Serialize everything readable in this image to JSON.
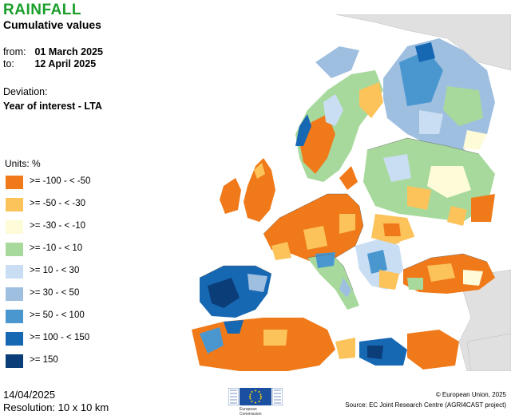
{
  "header": {
    "title": "RAINFALL",
    "subtitle": "Cumulative values"
  },
  "period": {
    "from_label": "from:",
    "from_value": "01 March 2025",
    "to_label": "to:",
    "to_value": "12 April 2025"
  },
  "deviation": {
    "label": "Deviation:",
    "value": "Year of interest - LTA"
  },
  "legend": {
    "title": "Units: %",
    "items": [
      {
        "label": ">= -100 - < -50",
        "color": "#f07a1a"
      },
      {
        "label": ">= -50 - < -30",
        "color": "#fbc35a"
      },
      {
        "label": ">= -30 - < -10",
        "color": "#fefbd8"
      },
      {
        "label": ">= -10 - < 10",
        "color": "#a8d99c"
      },
      {
        "label": ">= 10 - < 30",
        "color": "#c9def2"
      },
      {
        "label": ">= 30 - < 50",
        "color": "#9fbfe0"
      },
      {
        "label": ">= 50 - < 100",
        "color": "#4a97d0"
      },
      {
        "label": ">= 100 - < 150",
        "color": "#1768b3"
      },
      {
        "label": ">= 150",
        "color": "#0b3d78"
      }
    ]
  },
  "footer": {
    "date": "14/04/2025",
    "resolution": "Resolution: 10 x 10 km",
    "copyright": "© European Union, 2025",
    "source": "Source: EC Joint Research Centre (AGRI4CAST project)",
    "logo_text_1": "European",
    "logo_text_2": "Commission"
  },
  "map": {
    "sea_color": "#ffffff",
    "outside_land_color": "#e0e0e0"
  }
}
